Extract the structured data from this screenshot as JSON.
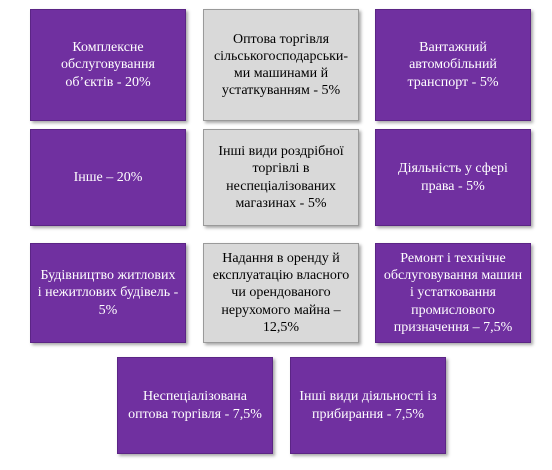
{
  "boxes": [
    {
      "id": "komplekse",
      "text": "Комплексне обслуговування об’єктів - 20%",
      "style": "purple"
    },
    {
      "id": "optova-silgosp",
      "text": "Оптова торгівля сільськогосподарськи-ми машинами й устаткуванням - 5%",
      "style": "gray"
    },
    {
      "id": "vantazhnyi",
      "text": "Вантажний автомобільний транспорт - 5%",
      "style": "purple"
    },
    {
      "id": "inshe",
      "text": "Інше – 20%",
      "style": "purple"
    },
    {
      "id": "rozdribna",
      "text": "Інші види роздрібної торгівлі в неспеціалізованих магазинах - 5%",
      "style": "gray"
    },
    {
      "id": "prava",
      "text": "Діяльність у сфері права - 5%",
      "style": "purple"
    },
    {
      "id": "budivnytstvo",
      "text": "Будівництво житлових і нежитлових будівель - 5%",
      "style": "purple"
    },
    {
      "id": "orenda",
      "text": "Надання в оренду й експлуатацію власного чи орендованого нерухомого майна – 12,5%",
      "style": "gray"
    },
    {
      "id": "remont",
      "text": "Ремонт і технічне обслуговування машин і устатковання промислового призначення – 7,5%",
      "style": "purple"
    },
    {
      "id": "nespets-optova",
      "text": "Неспеціалізована оптова торгівля - 7,5%",
      "style": "purple"
    },
    {
      "id": "prybyrannia",
      "text": "Інші види діяльності із прибирання - 7,5%",
      "style": "purple"
    }
  ]
}
